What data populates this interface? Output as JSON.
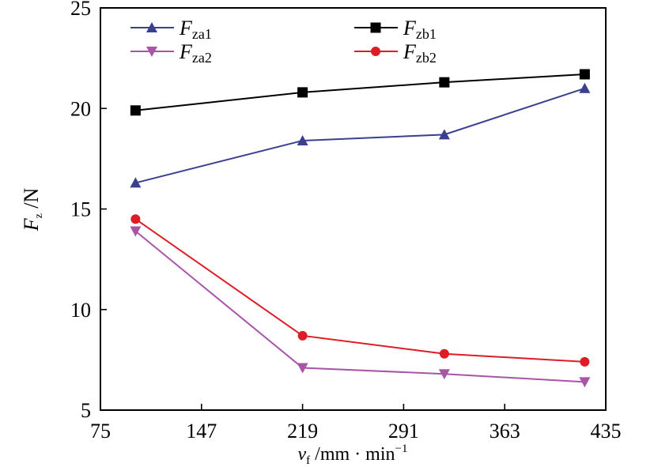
{
  "chart_data": {
    "type": "line",
    "x": [
      100,
      219,
      320,
      420
    ],
    "xlim": [
      75,
      435
    ],
    "ylim": [
      5,
      25
    ],
    "xticks": [
      75,
      147,
      219,
      291,
      363,
      435
    ],
    "yticks": [
      5,
      10,
      15,
      20,
      25
    ],
    "xtick_labels": [
      "75",
      "147",
      "219",
      "291",
      "363",
      "435"
    ],
    "ytick_labels": [
      "5",
      "10",
      "15",
      "20",
      "25"
    ],
    "xlabel": {
      "symbol": "v",
      "sub": "f",
      "unit": " /mm · min",
      "sup": "−1"
    },
    "ylabel": {
      "symbol": "F",
      "sub": "z",
      "unit": " /N"
    },
    "grid": false,
    "legend_position": "top",
    "series": [
      {
        "name": "F_za1",
        "label_symbol": "F",
        "label_sub": "za1",
        "color": "#3a3f8f",
        "marker": "triangle-up",
        "values": [
          16.3,
          18.4,
          18.7,
          21.0
        ]
      },
      {
        "name": "F_za2",
        "label_symbol": "F",
        "label_sub": "za2",
        "color": "#a855a8",
        "marker": "triangle-down",
        "values": [
          13.9,
          7.1,
          6.8,
          6.4
        ]
      },
      {
        "name": "F_zb1",
        "label_symbol": "F",
        "label_sub": "zb1",
        "color": "#000000",
        "marker": "square",
        "values": [
          19.9,
          20.8,
          21.3,
          21.7
        ]
      },
      {
        "name": "F_zb2",
        "label_symbol": "F",
        "label_sub": "zb2",
        "color": "#dd1c26",
        "marker": "circle",
        "values": [
          14.5,
          8.7,
          7.8,
          7.4
        ]
      }
    ]
  }
}
